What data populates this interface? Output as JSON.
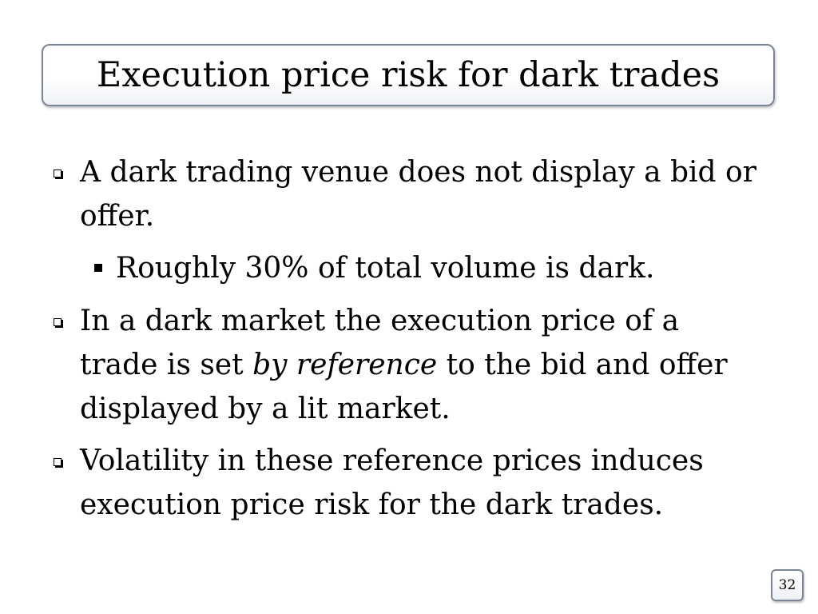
{
  "slide": {
    "title": "Execution price risk for dark trades",
    "page_number": "32",
    "bullets": [
      {
        "level": 1,
        "text": "A dark trading venue does not display a bid or offer."
      },
      {
        "level": 2,
        "text": "Roughly 30% of total volume is dark."
      },
      {
        "level": 1,
        "text_before": "In a dark market the execution price of a trade is set ",
        "text_italic": "by reference",
        "text_after": " to the bid and offer displayed by a lit market."
      },
      {
        "level": 1,
        "text": "Volatility in these reference prices induces execution price risk for the dark trades."
      }
    ]
  }
}
